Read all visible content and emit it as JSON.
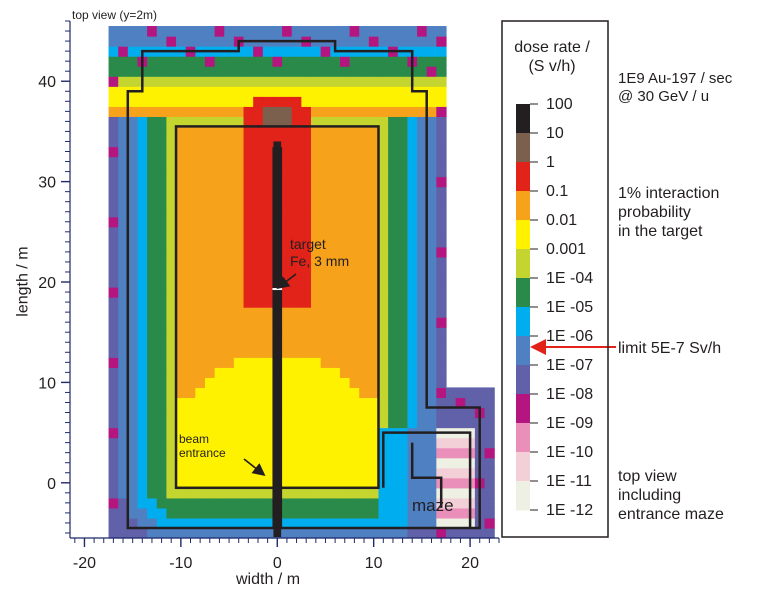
{
  "chart_data": {
    "type": "heatmap",
    "title": "top view (y=2m)",
    "xlabel": "width / m",
    "ylabel": "length / m",
    "xlim": [
      -21.5,
      23
    ],
    "ylim": [
      -5.5,
      46
    ],
    "xticks": [
      -20,
      -10,
      0,
      10,
      20
    ],
    "yticks": [
      0,
      10,
      20,
      30,
      40
    ],
    "cell_size_m": 1,
    "colorbar": {
      "title": "dose rate /\n(S v/h)",
      "levels": [
        "100",
        "10",
        "1",
        "0.1",
        "0.01",
        "0.001",
        "1E -04",
        "1E -05",
        "1E -06",
        "1E -07",
        "1E -08",
        "1E -09",
        "1E -10",
        "1E -11",
        "1E -12"
      ],
      "colors": [
        "#231f20",
        "#7b614d",
        "#e2231a",
        "#f7a21b",
        "#fff200",
        "#c3d52e",
        "#2a8a4a",
        "#00aeef",
        "#4f80c2",
        "#6061a9",
        "#b5157e",
        "#ea8fba",
        "#f3cfd8",
        "#edf0e3"
      ]
    },
    "annotations": {
      "target": "target\nFe, 3  mm",
      "beam_entrance": "beam\nentrance",
      "maze": "maze"
    }
  },
  "legend_notes": {
    "beam_info": "1E9  Au-197 / sec\n@ 30 GeV / u",
    "interaction": "1% interaction\nprobability\nin the target",
    "limit": "limit 5E-7 Sv/h",
    "view_note": "top view\nincluding\nentrance maze"
  }
}
